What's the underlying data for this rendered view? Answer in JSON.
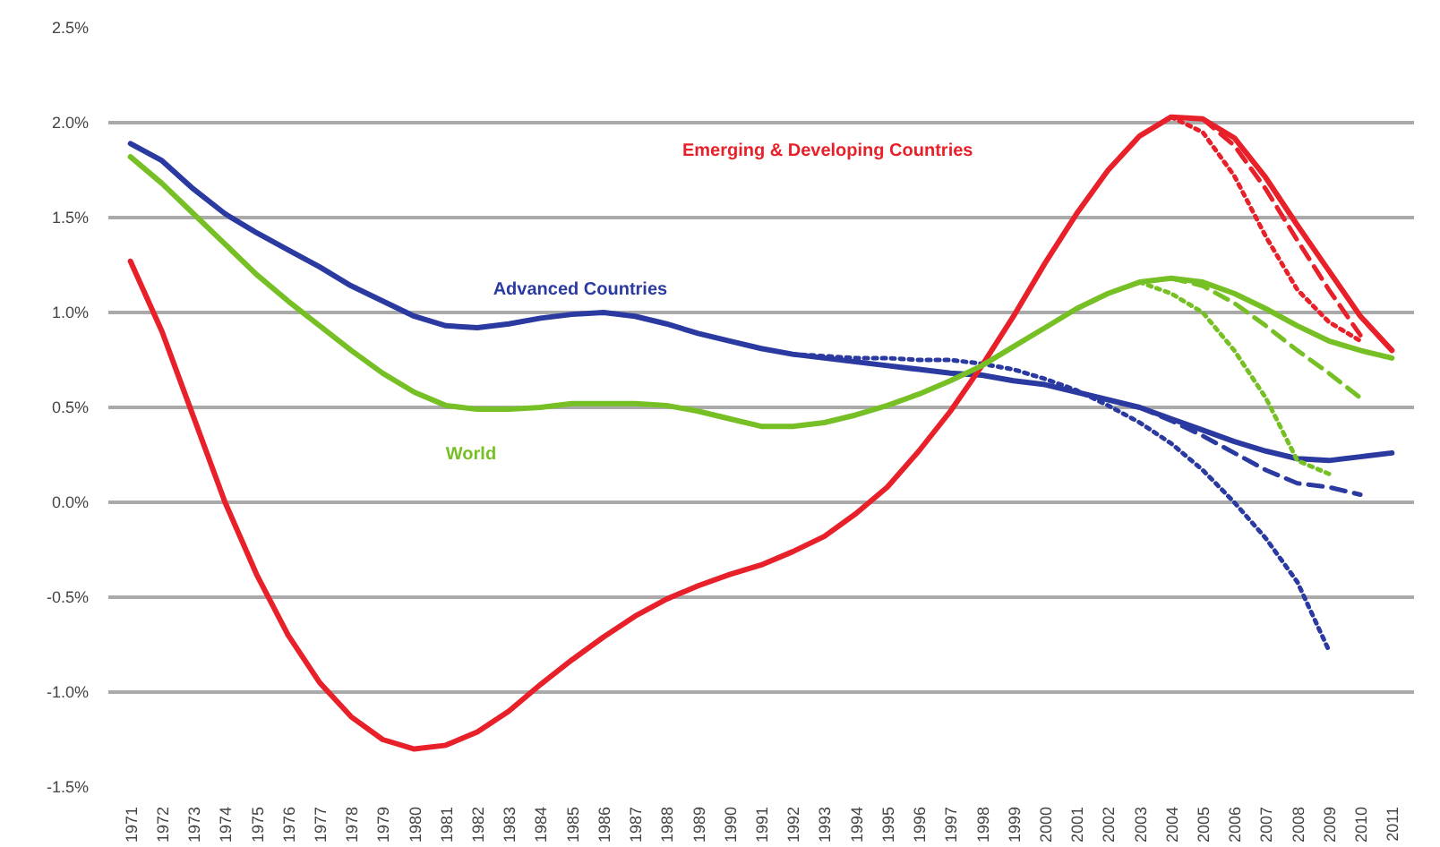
{
  "chart_data": {
    "type": "line",
    "categories": [
      "1971",
      "1972",
      "1973",
      "1974",
      "1975",
      "1976",
      "1977",
      "1978",
      "1979",
      "1980",
      "1981",
      "1982",
      "1983",
      "1984",
      "1985",
      "1986",
      "1987",
      "1988",
      "1989",
      "1990",
      "1991",
      "1992",
      "1993",
      "1994",
      "1995",
      "1996",
      "1997",
      "1998",
      "1999",
      "2000",
      "2001",
      "2002",
      "2003",
      "2004",
      "2005",
      "2006",
      "2007",
      "2008",
      "2009",
      "2010",
      "2011"
    ],
    "ylim": [
      -1.5,
      2.5
    ],
    "yticks": [
      {
        "value": -1.5,
        "label": "-1.5%"
      },
      {
        "value": -1.0,
        "label": "-1.0%"
      },
      {
        "value": -0.5,
        "label": "-0.5%"
      },
      {
        "value": 0.0,
        "label": "0.0%"
      },
      {
        "value": 0.5,
        "label": "0.5%"
      },
      {
        "value": 1.0,
        "label": "1.0%"
      },
      {
        "value": 1.5,
        "label": "1.5%"
      },
      {
        "value": 2.0,
        "label": "2.0%"
      },
      {
        "value": 2.5,
        "label": "2.5%"
      }
    ],
    "grid": "y",
    "legend": false,
    "marker": "none",
    "series": [
      {
        "name": "Advanced Countries",
        "color": "#2b3aa0",
        "line_style": "solid",
        "values": [
          1.89,
          1.8,
          1.65,
          1.52,
          1.42,
          1.33,
          1.24,
          1.14,
          1.06,
          0.98,
          0.93,
          0.92,
          0.94,
          0.97,
          0.99,
          1.0,
          0.98,
          0.94,
          0.89,
          0.85,
          0.81,
          0.78,
          0.76,
          0.74,
          0.72,
          0.7,
          0.68,
          0.67,
          0.64,
          0.62,
          0.58,
          0.54,
          0.5,
          0.44,
          0.38,
          0.32,
          0.27,
          0.23,
          0.22,
          0.24,
          0.26
        ]
      },
      {
        "color": "#2b3aa0",
        "line_style": "dashed",
        "values": [
          null,
          null,
          null,
          null,
          null,
          null,
          null,
          null,
          null,
          null,
          null,
          null,
          null,
          null,
          null,
          null,
          null,
          null,
          null,
          null,
          null,
          null,
          null,
          null,
          null,
          null,
          null,
          null,
          null,
          null,
          null,
          null,
          0.5,
          0.43,
          0.35,
          0.26,
          0.17,
          0.1,
          0.08,
          0.04,
          null
        ]
      },
      {
        "color": "#2b3aa0",
        "line_style": "dotted",
        "values": [
          null,
          null,
          null,
          null,
          null,
          null,
          null,
          null,
          null,
          null,
          null,
          null,
          null,
          null,
          null,
          null,
          null,
          null,
          null,
          null,
          null,
          0.78,
          0.77,
          0.76,
          0.76,
          0.75,
          0.75,
          0.73,
          0.7,
          0.65,
          0.59,
          0.51,
          0.42,
          0.31,
          0.17,
          0.0,
          -0.19,
          -0.42,
          -0.78,
          null,
          null
        ]
      },
      {
        "name": "Emerging & Developing Countries",
        "color": "#e8202a",
        "line_style": "solid",
        "values": [
          1.27,
          0.9,
          0.45,
          0.0,
          -0.38,
          -0.7,
          -0.95,
          -1.13,
          -1.25,
          -1.3,
          -1.28,
          -1.21,
          -1.1,
          -0.96,
          -0.83,
          -0.71,
          -0.6,
          -0.51,
          -0.44,
          -0.38,
          -0.33,
          -0.26,
          -0.18,
          -0.06,
          0.08,
          0.27,
          0.48,
          0.72,
          0.98,
          1.26,
          1.52,
          1.75,
          1.93,
          2.03,
          2.02,
          1.92,
          1.71,
          1.46,
          1.22,
          0.98,
          0.8
        ]
      },
      {
        "color": "#e8202a",
        "line_style": "dashed",
        "values": [
          null,
          null,
          null,
          null,
          null,
          null,
          null,
          null,
          null,
          null,
          null,
          null,
          null,
          null,
          null,
          null,
          null,
          null,
          null,
          null,
          null,
          null,
          null,
          null,
          null,
          null,
          null,
          null,
          null,
          null,
          null,
          null,
          null,
          null,
          2.02,
          1.88,
          1.65,
          1.38,
          1.12,
          0.88,
          null
        ]
      },
      {
        "color": "#e8202a",
        "line_style": "dotted",
        "values": [
          null,
          null,
          null,
          null,
          null,
          null,
          null,
          null,
          null,
          null,
          null,
          null,
          null,
          null,
          null,
          null,
          null,
          null,
          null,
          null,
          null,
          null,
          null,
          null,
          null,
          null,
          null,
          null,
          null,
          null,
          null,
          null,
          null,
          2.03,
          1.95,
          1.72,
          1.4,
          1.12,
          0.95,
          0.85,
          null
        ]
      },
      {
        "name": "World",
        "color": "#76c025",
        "line_style": "solid",
        "values": [
          1.82,
          1.68,
          1.52,
          1.36,
          1.2,
          1.06,
          0.93,
          0.8,
          0.68,
          0.58,
          0.51,
          0.49,
          0.49,
          0.5,
          0.52,
          0.52,
          0.52,
          0.51,
          0.48,
          0.44,
          0.4,
          0.4,
          0.42,
          0.46,
          0.51,
          0.57,
          0.64,
          0.72,
          0.82,
          0.92,
          1.02,
          1.1,
          1.16,
          1.18,
          1.16,
          1.1,
          1.02,
          0.93,
          0.85,
          0.8,
          0.76
        ]
      },
      {
        "color": "#76c025",
        "line_style": "dashed",
        "values": [
          null,
          null,
          null,
          null,
          null,
          null,
          null,
          null,
          null,
          null,
          null,
          null,
          null,
          null,
          null,
          null,
          null,
          null,
          null,
          null,
          null,
          null,
          null,
          null,
          null,
          null,
          null,
          null,
          null,
          null,
          null,
          null,
          null,
          1.18,
          1.14,
          1.05,
          0.93,
          0.8,
          0.68,
          0.55,
          null
        ]
      },
      {
        "color": "#76c025",
        "line_style": "dotted",
        "values": [
          null,
          null,
          null,
          null,
          null,
          null,
          null,
          null,
          null,
          null,
          null,
          null,
          null,
          null,
          null,
          null,
          null,
          null,
          null,
          null,
          null,
          null,
          null,
          null,
          null,
          null,
          null,
          null,
          null,
          null,
          null,
          null,
          1.16,
          1.1,
          1.0,
          0.8,
          0.55,
          0.22,
          0.15,
          null,
          null
        ]
      }
    ]
  }
}
